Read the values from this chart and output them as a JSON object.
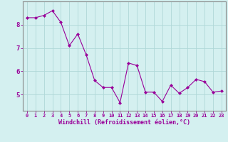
{
  "x": [
    0,
    1,
    2,
    3,
    4,
    5,
    6,
    7,
    8,
    9,
    10,
    11,
    12,
    13,
    14,
    15,
    16,
    17,
    18,
    19,
    20,
    21,
    22,
    23
  ],
  "y": [
    8.3,
    8.3,
    8.4,
    8.6,
    8.1,
    7.1,
    7.6,
    6.7,
    5.6,
    5.3,
    5.3,
    4.65,
    6.35,
    6.25,
    5.1,
    5.1,
    4.7,
    5.4,
    5.05,
    5.3,
    5.65,
    5.55,
    5.1,
    5.15
  ],
  "line_color": "#990099",
  "marker": "D",
  "markersize": 2.0,
  "linewidth": 0.8,
  "bg_color": "#d4f0f0",
  "grid_color": "#b0d8d8",
  "xlabel": "Windchill (Refroidissement éolien,°C)",
  "xlabel_color": "#990099",
  "xlabel_fontsize": 6.0,
  "tick_color": "#990099",
  "xtick_fontsize": 5.0,
  "ytick_fontsize": 6.5,
  "yticks": [
    5,
    6,
    7,
    8
  ],
  "ylim": [
    4.3,
    9.0
  ],
  "xlim": [
    -0.5,
    23.5
  ],
  "spine_color": "#888888"
}
